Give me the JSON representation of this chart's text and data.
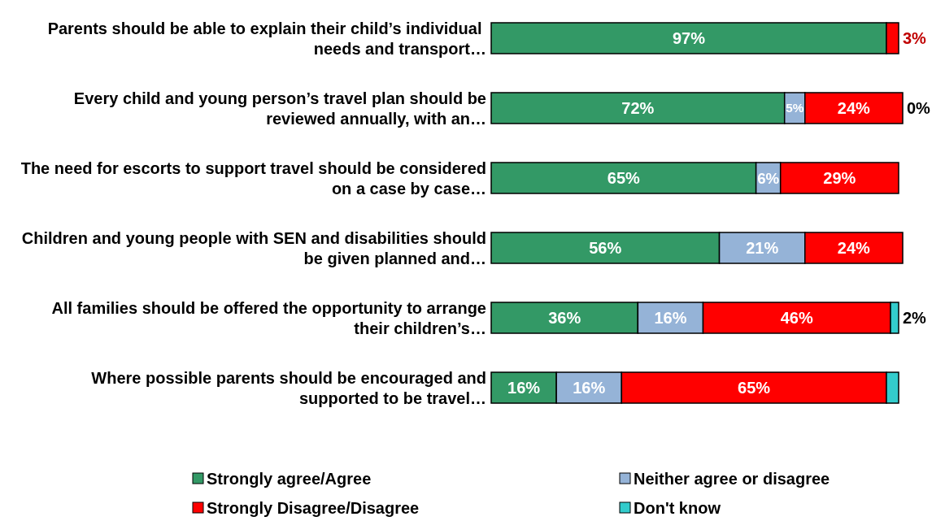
{
  "chart_data": {
    "type": "bar",
    "orientation": "horizontal",
    "stacked": true,
    "legend": "bottom",
    "categories": [
      "Parents should be able to explain their child’s individual  needs and transport…",
      "Every child and young person’s travel plan should be reviewed annually,  with an…",
      "The need for escorts to support travel should be considered on a case by case…",
      "Children and young people with SEN and disabilities should be given planned and…",
      "All families should be offered the opportunity  to arrange their children’s…",
      "Where possible parents should be encouraged and supported to be travel…"
    ],
    "series": [
      {
        "name": "Strongly agree/Agree",
        "color": "#339966",
        "values": [
          97,
          72,
          65,
          56,
          36,
          16
        ],
        "value_labels": [
          "97%",
          "72%",
          "65%",
          "56%",
          "36%",
          "16%"
        ]
      },
      {
        "name": "Neither agree or disagree",
        "color": "#95b3d7",
        "values": [
          0,
          5,
          6,
          21,
          16,
          16
        ],
        "value_labels": [
          null,
          "5%",
          "6%",
          "21%",
          "16%",
          "16%"
        ]
      },
      {
        "name": "Strongly Disagree/Disagree",
        "color": "#ff0000",
        "values": [
          3,
          24,
          29,
          24,
          46,
          65
        ],
        "value_labels": [
          "3%",
          "24%",
          "29%",
          "24%",
          "46%",
          "65%"
        ]
      },
      {
        "name": "Don't know",
        "color": "#33cccc",
        "values": [
          0,
          0,
          0,
          0,
          2,
          3
        ],
        "value_labels": [
          null,
          "0%",
          null,
          null,
          "2%",
          null
        ]
      }
    ]
  }
}
